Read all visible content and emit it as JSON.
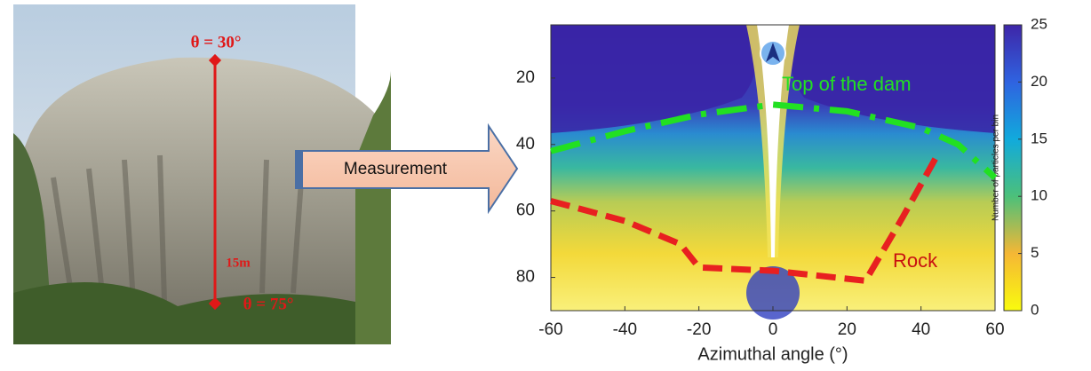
{
  "photo": {
    "top_angle": "θ = 30°",
    "bottom_angle": "θ = 75°",
    "height": "15m"
  },
  "arrow": {
    "label": "Measurement"
  },
  "chart_data": {
    "type": "heatmap",
    "xlabel": "Azimuthal angle (°)",
    "colorbar_label": "Number of particles per bin",
    "xlim": [
      -60,
      60
    ],
    "xticks": [
      -60,
      -40,
      -20,
      0,
      20,
      40,
      60
    ],
    "ylim": [
      4,
      90
    ],
    "y_inverted": true,
    "yticks": [
      20,
      40,
      60,
      80
    ],
    "clim": [
      0,
      25
    ],
    "cticks": [
      0,
      5,
      10,
      15,
      20,
      25
    ],
    "annotations": [
      {
        "text": "Top of the dam",
        "color": "#22e022",
        "x": [
          -60,
          -40,
          -20,
          0,
          20,
          40,
          50,
          60
        ],
        "y": [
          42,
          36,
          31,
          28,
          30,
          35,
          40,
          50
        ]
      },
      {
        "text": "Rock",
        "color": "#e82020",
        "x": [
          -60,
          -40,
          -25,
          -20,
          0,
          25,
          35,
          45
        ],
        "y": [
          57,
          63,
          70,
          77,
          78,
          81,
          62,
          42
        ]
      }
    ]
  }
}
